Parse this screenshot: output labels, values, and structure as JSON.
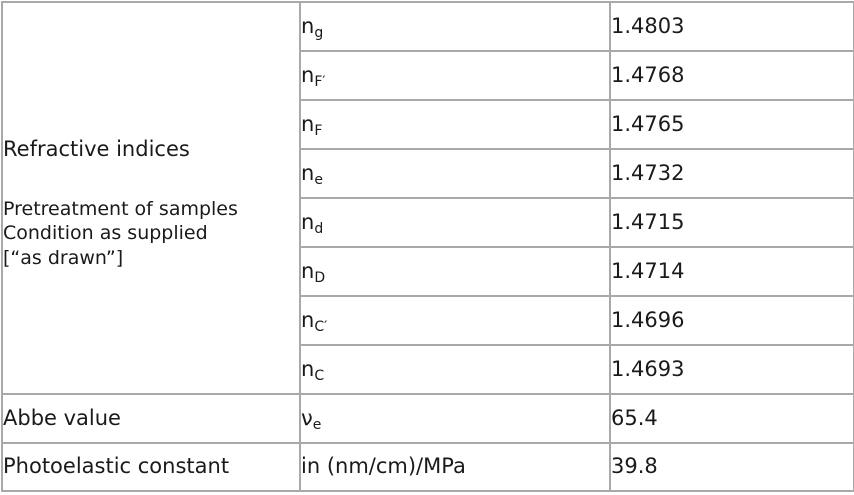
{
  "refractive": {
    "label": "Refractive indices",
    "pretreatment_lines": [
      "Pretreatment of samples",
      "Condition as supplied",
      "[“as drawn”]"
    ],
    "rows": [
      {
        "symbol": "n",
        "sub": "g",
        "value": "1.4803"
      },
      {
        "symbol": "n",
        "sub": "F′",
        "value": "1.4768"
      },
      {
        "symbol": "n",
        "sub": "F",
        "value": "1.4765"
      },
      {
        "symbol": "n",
        "sub": "e",
        "value": "1.4732"
      },
      {
        "symbol": "n",
        "sub": "d",
        "value": "1.4715"
      },
      {
        "symbol": "n",
        "sub": "D",
        "value": "1.4714"
      },
      {
        "symbol": "n",
        "sub": "C′",
        "value": "1.4696"
      },
      {
        "symbol": "n",
        "sub": "C",
        "value": "1.4693"
      }
    ]
  },
  "abbe": {
    "label": "Abbe value",
    "symbol": "ν",
    "sub": "e",
    "value": "65.4"
  },
  "photoelastic": {
    "label": "Photoelastic constant",
    "unit": "in (nm/cm)/MPa",
    "value": "39.8"
  }
}
